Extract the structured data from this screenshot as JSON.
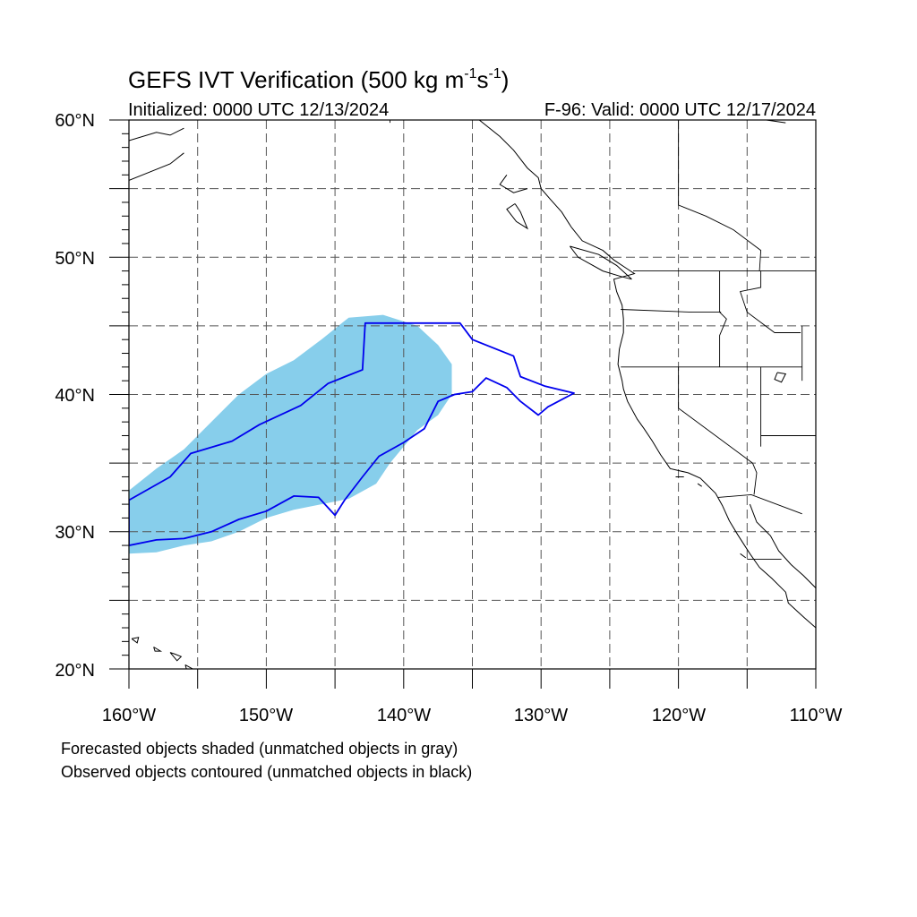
{
  "title": {
    "main": "GEFS IVT Verification (500 kg m",
    "sup1": "-1",
    "mid": "s",
    "sup2": "-1",
    "end": ")"
  },
  "subtitle_left": "Initialized: 0000 UTC 12/13/2024",
  "subtitle_right": "F-96: Valid: 0000 UTC 12/17/2024",
  "lat_labels": [
    "60°N",
    "50°N",
    "40°N",
    "30°N",
    "20°N"
  ],
  "lon_labels": [
    "160°W",
    "150°W",
    "140°W",
    "130°W",
    "120°W",
    "110°W"
  ],
  "legend_notes": [
    "Forecasted objects shaded (unmatched objects in gray)",
    "Observed objects contoured (unmatched objects in black)"
  ],
  "map_extent": {
    "lon": [
      -160,
      -110
    ],
    "lat": [
      20,
      60
    ]
  },
  "colors": {
    "forecast_fill": "#87ceeb",
    "observed_contour": "#0000ee",
    "coastline": "#000000",
    "grid": "#555555"
  },
  "forecast_object": [
    [
      -160,
      28.4
    ],
    [
      -158,
      28.5
    ],
    [
      -156,
      29
    ],
    [
      -154,
      29.3
    ],
    [
      -152,
      30
    ],
    [
      -150,
      31
    ],
    [
      -148,
      31.6
    ],
    [
      -146,
      32
    ],
    [
      -144,
      32.4
    ],
    [
      -142,
      33.5
    ],
    [
      -141,
      35
    ],
    [
      -139,
      37.4
    ],
    [
      -137.5,
      38.5
    ],
    [
      -136.5,
      40
    ],
    [
      -136.5,
      42.2
    ],
    [
      -137.5,
      43.6
    ],
    [
      -139,
      45
    ],
    [
      -141.5,
      45.8
    ],
    [
      -144,
      45.6
    ],
    [
      -146,
      44
    ],
    [
      -148,
      42.5
    ],
    [
      -150,
      41.5
    ],
    [
      -152,
      40
    ],
    [
      -154,
      38
    ],
    [
      -156,
      36
    ],
    [
      -158,
      34.6
    ],
    [
      -160,
      33
    ]
  ],
  "observed_objects": [
    [
      [
        -160,
        32.3
      ],
      [
        -157,
        34
      ],
      [
        -155.5,
        35.7
      ],
      [
        -152.5,
        36.6
      ],
      [
        -150.5,
        37.8
      ],
      [
        -147.5,
        39.2
      ],
      [
        -145.5,
        40.8
      ],
      [
        -143,
        41.8
      ],
      [
        -142.8,
        45.2
      ],
      [
        -135.9,
        45.2
      ],
      [
        -135,
        44
      ],
      [
        -132,
        42.8
      ],
      [
        -131.5,
        41.3
      ],
      [
        -129.7,
        40.6
      ],
      [
        -127.6,
        40.1
      ],
      [
        -129.5,
        39.1
      ],
      [
        -130.2,
        38.5
      ],
      [
        -131.5,
        39.5
      ],
      [
        -132.5,
        40.5
      ],
      [
        -134,
        41.2
      ],
      [
        -135,
        40.2
      ],
      [
        -136.3,
        40
      ],
      [
        -137.5,
        39.5
      ],
      [
        -138.5,
        37.5
      ],
      [
        -140,
        36.5
      ],
      [
        -141.8,
        35.5
      ],
      [
        -143,
        34
      ],
      [
        -144.3,
        32.3
      ],
      [
        -145,
        31.2
      ],
      [
        -146.2,
        32.5
      ],
      [
        -148,
        32.6
      ],
      [
        -150,
        31.5
      ],
      [
        -152,
        30.9
      ],
      [
        -154,
        30
      ],
      [
        -156,
        29.5
      ],
      [
        -158,
        29.4
      ],
      [
        -160,
        29
      ]
    ]
  ],
  "coastlines": [
    [
      [
        -134.5,
        60
      ],
      [
        -133,
        58.8
      ],
      [
        -132,
        57.8
      ],
      [
        -131,
        56.5
      ],
      [
        -130.2,
        55.8
      ],
      [
        -130,
        55
      ],
      [
        -129.3,
        54.2
      ],
      [
        -128.5,
        53.3
      ],
      [
        -127.8,
        52.2
      ],
      [
        -127,
        51.2
      ],
      [
        -125.5,
        50.5
      ],
      [
        -124.7,
        49.8
      ],
      [
        -123.8,
        49.2
      ],
      [
        -123.2,
        48.8
      ],
      [
        -124.7,
        48.4
      ],
      [
        -124.5,
        47.5
      ],
      [
        -124.1,
        46.5
      ],
      [
        -124,
        45.5
      ],
      [
        -124,
        44.5
      ],
      [
        -124.3,
        43.3
      ],
      [
        -124.4,
        42.2
      ],
      [
        -124.1,
        41
      ],
      [
        -124,
        40.4
      ],
      [
        -123.7,
        39.5
      ],
      [
        -123,
        38.2
      ],
      [
        -122.5,
        37.5
      ],
      [
        -121.9,
        36.6
      ],
      [
        -121.3,
        35.6
      ],
      [
        -120.6,
        34.6
      ],
      [
        -119.3,
        34.3
      ],
      [
        -118.4,
        33.9
      ],
      [
        -117.3,
        32.8
      ],
      [
        -116.8,
        31.9
      ],
      [
        -116.3,
        30.8
      ],
      [
        -115.7,
        29.8
      ],
      [
        -114.8,
        28.4
      ],
      [
        -114.1,
        27.4
      ],
      [
        -113.2,
        26.6
      ],
      [
        -112.2,
        25.6
      ],
      [
        -112,
        24.8
      ],
      [
        -110.8,
        23.7
      ],
      [
        -110,
        23
      ]
    ],
    [
      [
        -114.8,
        32
      ],
      [
        -114.3,
        30.7
      ],
      [
        -113.3,
        29.7
      ],
      [
        -112.7,
        28.6
      ],
      [
        -111.8,
        27.6
      ],
      [
        -110.9,
        26.8
      ],
      [
        -110,
        25.9
      ]
    ],
    [
      [
        -160,
        58.5
      ],
      [
        -158,
        59.1
      ],
      [
        -157,
        58.9
      ],
      [
        -156,
        59.4
      ]
    ],
    [
      [
        -160,
        55.6
      ],
      [
        -158.5,
        56.2
      ],
      [
        -157,
        56.8
      ],
      [
        -156,
        57.6
      ]
    ],
    [
      [
        -132.5,
        56
      ],
      [
        -133,
        55.3
      ],
      [
        -132,
        54.7
      ],
      [
        -131,
        55
      ]
    ],
    [
      [
        -131.9,
        53.9
      ],
      [
        -132.5,
        53.5
      ],
      [
        -131.8,
        52.6
      ],
      [
        -131,
        52.1
      ],
      [
        -131.5,
        53.3
      ],
      [
        -131.9,
        53.9
      ]
    ],
    [
      [
        -127.9,
        50.8
      ],
      [
        -125.8,
        50.2
      ],
      [
        -124.5,
        49.4
      ],
      [
        -123.4,
        48.4
      ],
      [
        -124.2,
        48.6
      ],
      [
        -125.5,
        49
      ],
      [
        -127.3,
        50
      ],
      [
        -127.9,
        50.8
      ]
    ],
    [
      [
        -113.6,
        60
      ],
      [
        -112.2,
        59.8
      ]
    ]
  ],
  "islands": [
    [
      [
        -159.8,
        22.2
      ],
      [
        -159.3,
        22.3
      ],
      [
        -159.4,
        21.9
      ],
      [
        -159.8,
        22.2
      ]
    ],
    [
      [
        -158.2,
        21.6
      ],
      [
        -157.7,
        21.3
      ],
      [
        -158.1,
        21.3
      ],
      [
        -158.2,
        21.6
      ]
    ],
    [
      [
        -157,
        21.2
      ],
      [
        -156.7,
        21.1
      ],
      [
        -156.2,
        20.9
      ],
      [
        -156.5,
        20.6
      ],
      [
        -157,
        21.2
      ]
    ],
    [
      [
        -155.9,
        20.3
      ],
      [
        -155,
        19.8
      ],
      [
        -155.6,
        19.2
      ],
      [
        -155.9,
        20.3
      ]
    ],
    [
      [
        -118.6,
        33.5
      ],
      [
        -118.3,
        33.3
      ]
    ],
    [
      [
        -120.2,
        34
      ],
      [
        -119.6,
        34
      ]
    ],
    [
      [
        -115.5,
        28.4
      ],
      [
        -115.1,
        28.1
      ]
    ]
  ],
  "borders": [
    [
      [
        -123.3,
        49
      ],
      [
        -95,
        49
      ]
    ],
    [
      [
        -141,
        60
      ],
      [
        -141,
        59.8
      ]
    ],
    [
      [
        -124.2,
        42
      ],
      [
        -111,
        42
      ]
    ],
    [
      [
        -120,
        42
      ],
      [
        -120,
        39
      ],
      [
        -114.6,
        35
      ]
    ],
    [
      [
        -117,
        49
      ],
      [
        -117,
        46
      ],
      [
        -116.5,
        45.5
      ],
      [
        -117,
        44.3
      ],
      [
        -117,
        42
      ]
    ],
    [
      [
        -124.2,
        46.2
      ],
      [
        -119,
        46
      ],
      [
        -116.9,
        46
      ]
    ],
    [
      [
        -114,
        49
      ],
      [
        -114,
        47.8
      ],
      [
        -115.5,
        47.5
      ],
      [
        -115,
        46
      ],
      [
        -113,
        44.5
      ],
      [
        -111.1,
        44.5
      ]
    ],
    [
      [
        -114,
        42
      ],
      [
        -114,
        36.2
      ]
    ],
    [
      [
        -114.6,
        35
      ],
      [
        -114.3,
        34.3
      ],
      [
        -114.5,
        32.7
      ]
    ],
    [
      [
        -117.1,
        32.5
      ],
      [
        -114.7,
        32.7
      ],
      [
        -111,
        31.3
      ]
    ],
    [
      [
        -111,
        45
      ],
      [
        -111,
        41
      ],
      [
        -111,
        41
      ]
    ],
    [
      [
        -114,
        37
      ],
      [
        -109,
        37
      ]
    ],
    [
      [
        -120,
        60
      ],
      [
        -120,
        53.8
      ],
      [
        -118,
        53
      ],
      [
        -116,
        52
      ],
      [
        -114,
        50.5
      ],
      [
        -114.1,
        49
      ]
    ],
    [
      [
        -115,
        28
      ],
      [
        -112.5,
        28
      ]
    ]
  ],
  "lakes": [
    [
      [
        -112.8,
        41.6
      ],
      [
        -112.2,
        41.5
      ],
      [
        -112.5,
        40.9
      ],
      [
        -113,
        41.1
      ],
      [
        -112.8,
        41.6
      ]
    ]
  ]
}
